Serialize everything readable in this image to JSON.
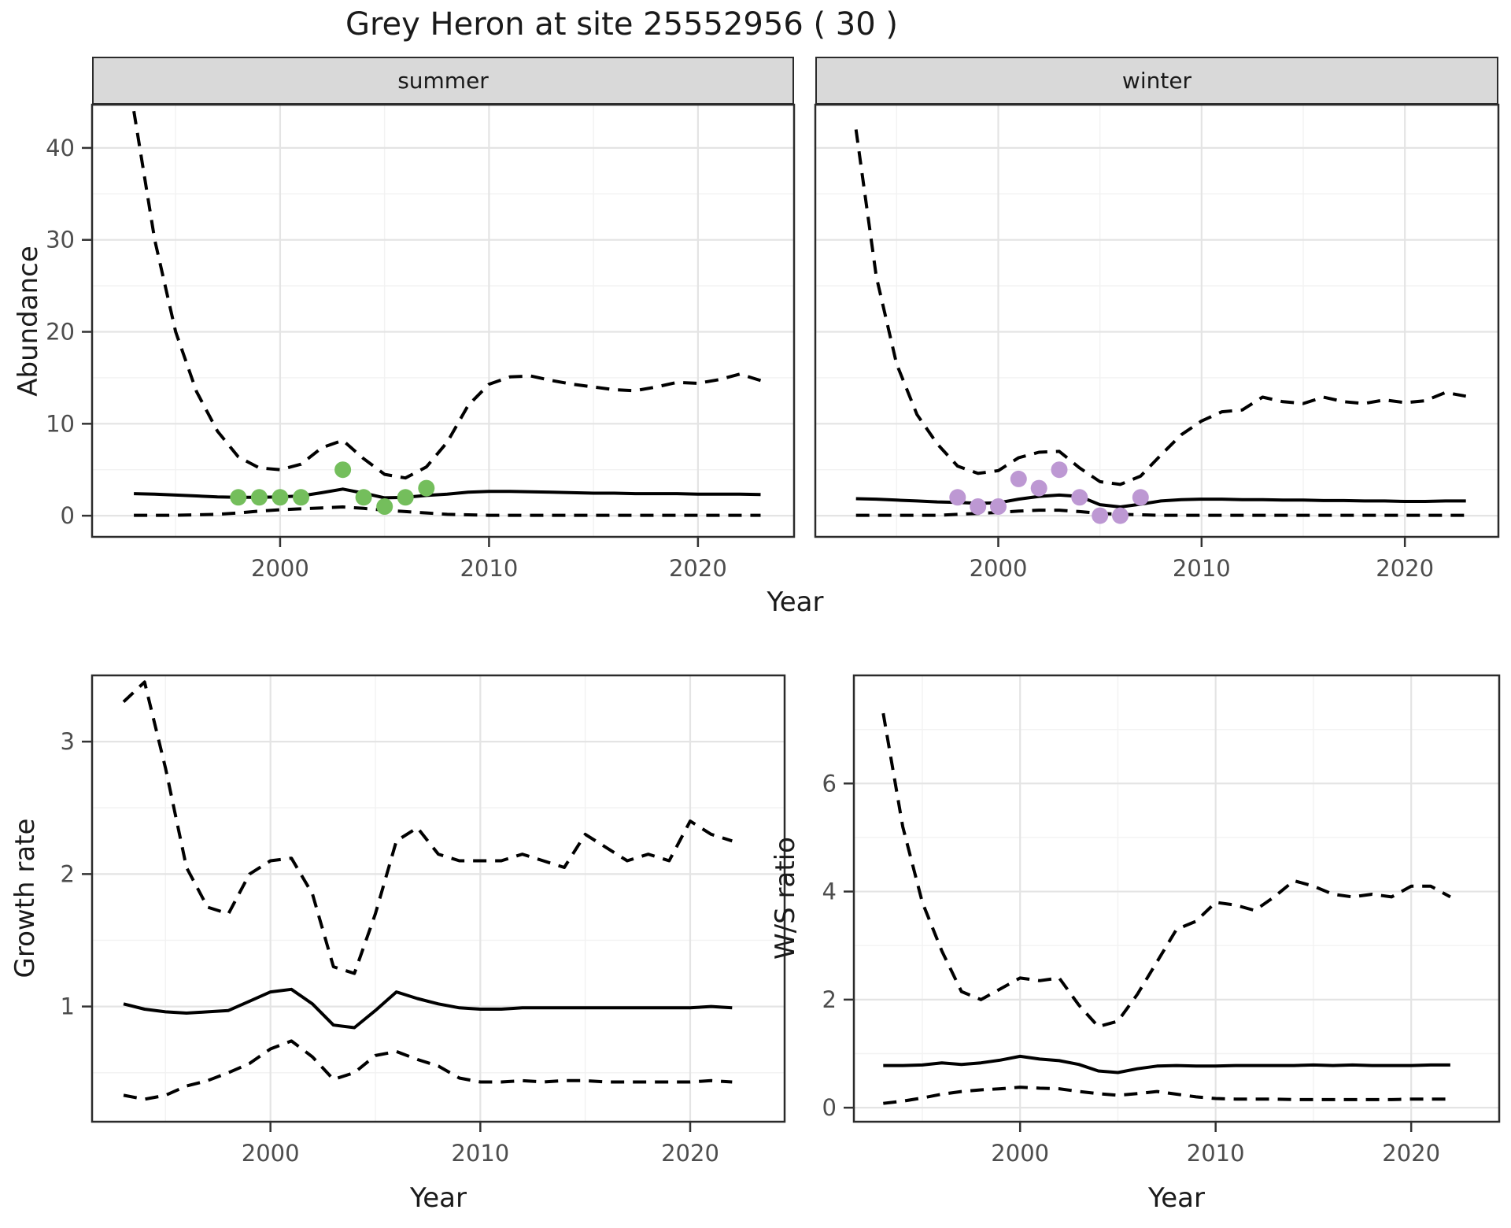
{
  "title": "Grey Heron at site 25552956 ( 30 )",
  "facets": {
    "left": "summer",
    "right": "winter"
  },
  "axes": {
    "abundance_label": "Abundance",
    "growth_label": "Growth rate",
    "ws_label": "W/S ratio",
    "year_label_top": "Year",
    "year_label_bottom_left": "Year",
    "year_label_bottom_right": "Year"
  },
  "colors": {
    "summer_points": "#74be5c",
    "winter_points": "#bd98d3",
    "line": "#000000",
    "strip_background": "#d9d9d9",
    "panel_border": "#2b2b2b",
    "grid_major": "#e4e4e4",
    "grid_minor": "#f2f2f2",
    "tick_text": "#4d4d4d"
  },
  "chart_data": [
    {
      "name": "abundance-summer",
      "type": "line",
      "facet": "summer",
      "title": "summer",
      "xlabel": "Year",
      "ylabel": "Abundance",
      "grid": true,
      "legend": false,
      "xlim": [
        1991.0,
        2024.6
      ],
      "ylim": [
        -2.3,
        44.7
      ],
      "xticks": [
        2000,
        2010,
        2020
      ],
      "xminor": [
        1995,
        2005,
        2015
      ],
      "yticks": [
        0,
        10,
        20,
        30,
        40
      ],
      "yminor": [
        5,
        15,
        25,
        35
      ],
      "x": [
        1993,
        1994,
        1995,
        1996,
        1997,
        1998,
        1999,
        2000,
        2001,
        2002,
        2003,
        2004,
        2005,
        2006,
        2007,
        2008,
        2009,
        2010,
        2011,
        2012,
        2013,
        2014,
        2015,
        2016,
        2017,
        2018,
        2019,
        2020,
        2021,
        2022,
        2023
      ],
      "series": [
        {
          "name": "ci-upper",
          "style": "dashed",
          "values": [
            44,
            30,
            20,
            13.5,
            9.2,
            6.4,
            5.2,
            5.0,
            5.6,
            7.4,
            8.2,
            6.2,
            4.5,
            4.1,
            5.3,
            8.0,
            12.0,
            14.3,
            15.1,
            15.2,
            14.7,
            14.3,
            14.0,
            13.7,
            13.6,
            14.0,
            14.5,
            14.4,
            14.8,
            15.4,
            14.7
          ]
        },
        {
          "name": "median",
          "style": "solid",
          "values": [
            2.4,
            2.35,
            2.25,
            2.15,
            2.05,
            2.0,
            2.0,
            2.05,
            2.15,
            2.5,
            2.9,
            2.45,
            1.95,
            2.0,
            2.2,
            2.35,
            2.55,
            2.65,
            2.65,
            2.6,
            2.55,
            2.5,
            2.45,
            2.45,
            2.4,
            2.4,
            2.4,
            2.35,
            2.35,
            2.35,
            2.3
          ]
        },
        {
          "name": "ci-lower",
          "style": "dashed",
          "values": [
            0.05,
            0.05,
            0.05,
            0.1,
            0.15,
            0.3,
            0.5,
            0.65,
            0.75,
            0.85,
            0.95,
            0.8,
            0.6,
            0.45,
            0.3,
            0.15,
            0.1,
            0.05,
            0.05,
            0.05,
            0.05,
            0.05,
            0.05,
            0.05,
            0.05,
            0.05,
            0.05,
            0.05,
            0.05,
            0.05,
            0.05
          ]
        }
      ],
      "points": {
        "color": "#74be5c",
        "x": [
          1998,
          1999,
          2000,
          2001,
          2003,
          2004,
          2005,
          2006,
          2007
        ],
        "y": [
          2,
          2,
          2,
          2,
          5,
          2,
          1,
          2,
          3
        ]
      }
    },
    {
      "name": "abundance-winter",
      "type": "line",
      "facet": "winter",
      "title": "winter",
      "xlabel": "Year",
      "ylabel": "Abundance",
      "grid": true,
      "legend": false,
      "xlim": [
        1991.0,
        2024.6
      ],
      "ylim": [
        -2.3,
        44.7
      ],
      "xticks": [
        2000,
        2010,
        2020
      ],
      "xminor": [
        1995,
        2005,
        2015
      ],
      "yticks": [
        0,
        10,
        20,
        30,
        40
      ],
      "yminor": [
        5,
        15,
        25,
        35
      ],
      "x": [
        1993,
        1994,
        1995,
        1996,
        1997,
        1998,
        1999,
        2000,
        2001,
        2002,
        2003,
        2004,
        2005,
        2006,
        2007,
        2008,
        2009,
        2010,
        2011,
        2012,
        2013,
        2014,
        2015,
        2016,
        2017,
        2018,
        2019,
        2020,
        2021,
        2022,
        2023
      ],
      "series": [
        {
          "name": "ci-upper",
          "style": "dashed",
          "values": [
            42,
            26,
            16.5,
            11,
            7.8,
            5.4,
            4.6,
            4.9,
            6.3,
            6.9,
            7.0,
            5.2,
            3.7,
            3.4,
            4.3,
            6.6,
            8.8,
            10.3,
            11.3,
            11.5,
            12.9,
            12.4,
            12.2,
            12.9,
            12.4,
            12.2,
            12.6,
            12.3,
            12.5,
            13.4,
            13.0
          ]
        },
        {
          "name": "median",
          "style": "solid",
          "values": [
            1.85,
            1.8,
            1.7,
            1.6,
            1.5,
            1.45,
            1.35,
            1.4,
            1.8,
            2.1,
            2.25,
            2.1,
            1.2,
            0.95,
            1.25,
            1.6,
            1.75,
            1.8,
            1.8,
            1.75,
            1.75,
            1.7,
            1.7,
            1.65,
            1.65,
            1.6,
            1.6,
            1.55,
            1.55,
            1.6,
            1.6
          ]
        },
        {
          "name": "ci-lower",
          "style": "dashed",
          "values": [
            0.05,
            0.05,
            0.05,
            0.05,
            0.05,
            0.15,
            0.25,
            0.35,
            0.5,
            0.6,
            0.6,
            0.45,
            0.25,
            0.15,
            0.1,
            0.05,
            0.05,
            0.05,
            0.05,
            0.05,
            0.05,
            0.05,
            0.05,
            0.05,
            0.05,
            0.05,
            0.05,
            0.05,
            0.05,
            0.05,
            0.05
          ]
        }
      ],
      "points": {
        "color": "#bd98d3",
        "x": [
          1998,
          1999,
          2000,
          2001,
          2002,
          2003,
          2004,
          2005,
          2006,
          2007
        ],
        "y": [
          2,
          1,
          1,
          4,
          3,
          5,
          2,
          0,
          0,
          2
        ]
      }
    },
    {
      "name": "growth-rate",
      "type": "line",
      "xlabel": "Year",
      "ylabel": "Growth rate",
      "grid": true,
      "legend": false,
      "xlim": [
        1991.5,
        2024.5
      ],
      "ylim": [
        0.13,
        3.5
      ],
      "xticks": [
        2000,
        2010,
        2020
      ],
      "xminor": [
        1995,
        2005,
        2015
      ],
      "yticks": [
        1,
        2,
        3
      ],
      "yminor": [
        0.5,
        1.5,
        2.5,
        3.5
      ],
      "x": [
        1993,
        1994,
        1995,
        1996,
        1997,
        1998,
        1999,
        2000,
        2001,
        2002,
        2003,
        2004,
        2005,
        2006,
        2007,
        2008,
        2009,
        2010,
        2011,
        2012,
        2013,
        2014,
        2015,
        2016,
        2017,
        2018,
        2019,
        2020,
        2021,
        2022
      ],
      "series": [
        {
          "name": "ci-upper",
          "style": "dashed",
          "values": [
            3.3,
            3.45,
            2.8,
            2.05,
            1.75,
            1.7,
            2.0,
            2.1,
            2.12,
            1.85,
            1.3,
            1.25,
            1.7,
            2.25,
            2.35,
            2.15,
            2.1,
            2.1,
            2.1,
            2.15,
            2.1,
            2.05,
            2.3,
            2.2,
            2.1,
            2.15,
            2.1,
            2.4,
            2.3,
            2.25
          ]
        },
        {
          "name": "median",
          "style": "solid",
          "values": [
            1.02,
            0.98,
            0.96,
            0.95,
            0.96,
            0.97,
            1.04,
            1.11,
            1.13,
            1.02,
            0.86,
            0.84,
            0.97,
            1.11,
            1.06,
            1.02,
            0.99,
            0.98,
            0.98,
            0.99,
            0.99,
            0.99,
            0.99,
            0.99,
            0.99,
            0.99,
            0.99,
            0.99,
            1.0,
            0.99
          ]
        },
        {
          "name": "ci-lower",
          "style": "dashed",
          "values": [
            0.33,
            0.3,
            0.33,
            0.4,
            0.44,
            0.5,
            0.57,
            0.68,
            0.74,
            0.62,
            0.45,
            0.5,
            0.63,
            0.66,
            0.6,
            0.55,
            0.46,
            0.43,
            0.43,
            0.44,
            0.43,
            0.44,
            0.44,
            0.43,
            0.43,
            0.43,
            0.43,
            0.43,
            0.44,
            0.43
          ]
        }
      ]
    },
    {
      "name": "ws-ratio",
      "type": "line",
      "xlabel": "Year",
      "ylabel": "W/S ratio",
      "grid": true,
      "legend": false,
      "xlim": [
        1991.5,
        2024.5
      ],
      "ylim": [
        -0.26,
        8.0
      ],
      "xticks": [
        2000,
        2010,
        2020
      ],
      "xminor": [
        1995,
        2005,
        2015
      ],
      "yticks": [
        0,
        2,
        4,
        6
      ],
      "yminor": [
        1,
        3,
        5,
        7
      ],
      "x": [
        1993,
        1994,
        1995,
        1996,
        1997,
        1998,
        1999,
        2000,
        2001,
        2002,
        2003,
        2004,
        2005,
        2006,
        2007,
        2008,
        2009,
        2010,
        2011,
        2012,
        2013,
        2014,
        2015,
        2016,
        2017,
        2018,
        2019,
        2020,
        2021,
        2022
      ],
      "series": [
        {
          "name": "ci-upper",
          "style": "dashed",
          "values": [
            7.3,
            5.2,
            3.8,
            2.9,
            2.15,
            2.0,
            2.2,
            2.4,
            2.35,
            2.4,
            1.9,
            1.5,
            1.6,
            2.1,
            2.7,
            3.3,
            3.45,
            3.8,
            3.75,
            3.65,
            3.9,
            4.2,
            4.1,
            3.95,
            3.9,
            3.95,
            3.9,
            4.1,
            4.1,
            3.9
          ]
        },
        {
          "name": "median",
          "style": "solid",
          "values": [
            0.78,
            0.78,
            0.79,
            0.83,
            0.8,
            0.83,
            0.88,
            0.95,
            0.9,
            0.87,
            0.8,
            0.68,
            0.65,
            0.72,
            0.77,
            0.78,
            0.77,
            0.77,
            0.78,
            0.78,
            0.78,
            0.78,
            0.79,
            0.78,
            0.79,
            0.78,
            0.78,
            0.78,
            0.79,
            0.79
          ]
        },
        {
          "name": "ci-lower",
          "style": "dashed",
          "values": [
            0.08,
            0.12,
            0.18,
            0.25,
            0.3,
            0.33,
            0.35,
            0.38,
            0.36,
            0.35,
            0.3,
            0.26,
            0.23,
            0.26,
            0.3,
            0.25,
            0.2,
            0.17,
            0.16,
            0.16,
            0.16,
            0.15,
            0.15,
            0.15,
            0.15,
            0.15,
            0.15,
            0.16,
            0.16,
            0.16
          ]
        }
      ]
    }
  ]
}
